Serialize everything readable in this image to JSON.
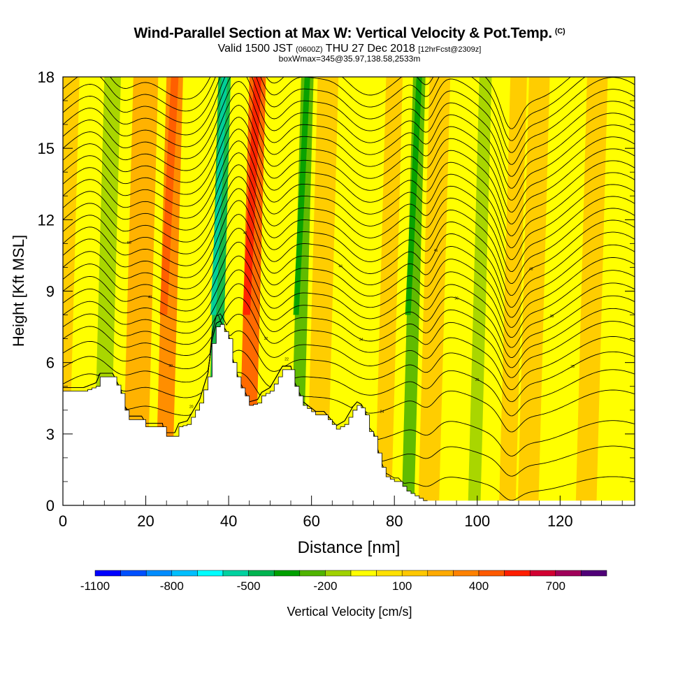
{
  "title": {
    "main": "Wind-Parallel Section at Max W: Vertical Velocity & Pot.Temp.",
    "mark": "(C)",
    "valid_pre": "Valid 1500 JST",
    "valid_z": "(0600Z)",
    "valid_date": "THU 27 Dec 2018",
    "valid_fcst": "[12hrFcst@2309z]",
    "boxinfo": "boxWmax=345@35.97,138.58,2533m"
  },
  "chart_data": {
    "type": "heatmap",
    "xlabel": "Distance [nm]",
    "ylabel": "Height [Kft MSL]",
    "xlim": [
      0,
      138
    ],
    "ylim": [
      0,
      18
    ],
    "xticks": [
      0,
      20,
      40,
      60,
      80,
      100,
      120
    ],
    "yticks": [
      0,
      3,
      6,
      9,
      12,
      15,
      18
    ],
    "colorbar": {
      "label": "Vertical Velocity [cm/s]",
      "tick_labels": [
        "-1100",
        "-800",
        "-500",
        "-200",
        "100",
        "400",
        "700"
      ],
      "tick_values": [
        -1100,
        -800,
        -500,
        -200,
        100,
        400,
        700
      ],
      "colors": [
        "#0000ff",
        "#0050ff",
        "#008cff",
        "#00bfff",
        "#00ffff",
        "#00d2a0",
        "#00b450",
        "#00a000",
        "#50b400",
        "#a0d200",
        "#ffff00",
        "#ffe100",
        "#ffc800",
        "#ffaa00",
        "#ff8200",
        "#ff5a00",
        "#ff1e00",
        "#d20032",
        "#a0005a",
        "#500078"
      ]
    },
    "terrain_kft": [
      [
        0,
        4.8
      ],
      [
        5,
        4.8
      ],
      [
        8,
        5.0
      ],
      [
        9,
        5.4
      ],
      [
        12,
        5.4
      ],
      [
        14,
        4.7
      ],
      [
        15,
        4.0
      ],
      [
        16,
        3.6
      ],
      [
        19,
        3.6
      ],
      [
        20,
        3.3
      ],
      [
        24,
        3.3
      ],
      [
        24.5,
        2.9
      ],
      [
        27,
        2.9
      ],
      [
        28,
        3.3
      ],
      [
        30,
        3.4
      ],
      [
        31,
        3.7
      ],
      [
        33,
        4.3
      ],
      [
        35,
        5.4
      ],
      [
        36,
        6.8
      ],
      [
        37,
        7.5
      ],
      [
        38,
        7.6
      ],
      [
        40,
        7.0
      ],
      [
        41,
        6.0
      ],
      [
        42.5,
        5.1
      ],
      [
        44,
        4.6
      ],
      [
        45,
        4.2
      ],
      [
        47,
        4.3
      ],
      [
        48,
        4.6
      ],
      [
        50,
        4.8
      ],
      [
        51,
        5.1
      ],
      [
        53,
        5.7
      ],
      [
        55,
        5.7
      ],
      [
        56,
        5.0
      ],
      [
        57,
        4.6
      ],
      [
        58,
        4.2
      ],
      [
        61,
        3.8
      ],
      [
        63,
        3.8
      ],
      [
        66,
        3.2
      ],
      [
        68,
        3.4
      ],
      [
        70,
        4.0
      ],
      [
        71,
        4.2
      ],
      [
        72,
        4.1
      ],
      [
        73,
        3.8
      ],
      [
        74,
        3.1
      ],
      [
        75,
        2.9
      ],
      [
        76,
        2.2
      ],
      [
        77,
        1.6
      ],
      [
        78,
        1.2
      ],
      [
        80,
        1.0
      ],
      [
        81,
        1.0
      ],
      [
        82,
        0.8
      ],
      [
        83,
        0.6
      ],
      [
        84,
        0.5
      ],
      [
        85,
        0.4
      ],
      [
        86,
        0.3
      ],
      [
        87,
        0.2
      ],
      [
        88,
        0.0
      ]
    ],
    "velocity_bands": [
      {
        "x": 2,
        "value": 100,
        "width": 8
      },
      {
        "x": 14,
        "value": -200,
        "width": 4
      },
      {
        "x": 22,
        "value": 200,
        "width": 6
      },
      {
        "x": 29,
        "value": 300,
        "width": 4
      },
      {
        "x": 41,
        "value": -500,
        "width": 3
      },
      {
        "x": 49,
        "value": 400,
        "width": 4
      },
      {
        "x": 61,
        "value": -300,
        "width": 3
      },
      {
        "x": 66,
        "value": 100,
        "width": 5
      },
      {
        "x": 77,
        "value": -100,
        "width": 4
      },
      {
        "x": 82,
        "value": 100,
        "width": 4
      },
      {
        "x": 88,
        "value": -300,
        "width": 3
      },
      {
        "x": 93,
        "value": 100,
        "width": 5
      },
      {
        "x": 104,
        "value": -200,
        "width": 3
      },
      {
        "x": 112,
        "value": 100,
        "width": 4
      },
      {
        "x": 117,
        "value": 100,
        "width": 5
      },
      {
        "x": 131,
        "value": 100,
        "width": 5
      }
    ],
    "theta_contours": {
      "base_heights_kft": [
        0.9,
        2.1,
        3.1,
        4.3,
        5.1,
        5.8,
        6.4,
        7.0,
        7.5,
        8.0,
        8.5,
        9.0,
        9.5,
        10.0,
        10.5,
        11.0,
        11.5,
        12.0,
        12.5,
        13.0,
        13.5,
        14.0,
        14.5,
        15.0,
        15.5,
        16.0,
        16.5,
        17.0,
        17.5,
        18.0
      ],
      "labeled_values": [
        18,
        20,
        22,
        24,
        26,
        28,
        30,
        32,
        34,
        36,
        38,
        40,
        42,
        44,
        46,
        48,
        50
      ]
    }
  }
}
